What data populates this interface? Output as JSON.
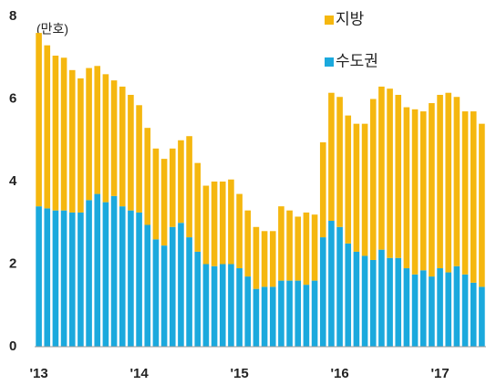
{
  "chart_data": {
    "type": "stacked_bar",
    "unit": "(만호)",
    "categories": [
      "'13",
      null,
      null,
      null,
      null,
      null,
      null,
      null,
      null,
      null,
      null,
      null,
      "'14",
      null,
      null,
      null,
      null,
      null,
      null,
      null,
      null,
      null,
      null,
      null,
      "'15",
      null,
      null,
      null,
      null,
      null,
      null,
      null,
      null,
      null,
      null,
      null,
      "'16",
      null,
      null,
      null,
      null,
      null,
      null,
      null,
      null,
      null,
      null,
      null,
      "'17",
      null,
      null,
      null,
      null,
      null
    ],
    "series": [
      {
        "name": "지방",
        "color": "#f5b70f",
        "values": [
          4.2,
          3.95,
          3.75,
          3.7,
          3.45,
          3.25,
          3.2,
          3.1,
          3.1,
          2.8,
          2.9,
          2.8,
          2.6,
          2.35,
          2.2,
          2.1,
          1.9,
          2.0,
          2.45,
          2.15,
          1.9,
          2.05,
          2.0,
          2.05,
          1.8,
          1.6,
          1.5,
          1.35,
          1.35,
          1.8,
          1.7,
          1.55,
          1.75,
          1.6,
          2.3,
          3.1,
          3.15,
          3.1,
          3.1,
          3.2,
          3.9,
          3.95,
          4.1,
          3.95,
          3.9,
          4.0,
          3.85,
          4.2,
          4.2,
          4.35,
          4.1,
          3.95,
          4.15,
          3.95
        ]
      },
      {
        "name": "수도권",
        "color": "#1ba9dd",
        "values": [
          3.4,
          3.35,
          3.3,
          3.3,
          3.25,
          3.25,
          3.55,
          3.7,
          3.5,
          3.65,
          3.4,
          3.3,
          3.25,
          2.95,
          2.6,
          2.45,
          2.9,
          3.0,
          2.65,
          2.3,
          2.0,
          1.95,
          2.0,
          2.0,
          1.9,
          1.7,
          1.4,
          1.45,
          1.45,
          1.6,
          1.6,
          1.6,
          1.5,
          1.6,
          2.65,
          3.05,
          2.9,
          2.5,
          2.3,
          2.2,
          2.1,
          2.35,
          2.15,
          2.15,
          1.9,
          1.75,
          1.85,
          1.7,
          1.9,
          1.8,
          1.95,
          1.75,
          1.55,
          1.45
        ]
      }
    ],
    "ylim": [
      0,
      8
    ],
    "yticks": [
      0,
      2,
      4,
      6,
      8
    ],
    "grid": false
  }
}
